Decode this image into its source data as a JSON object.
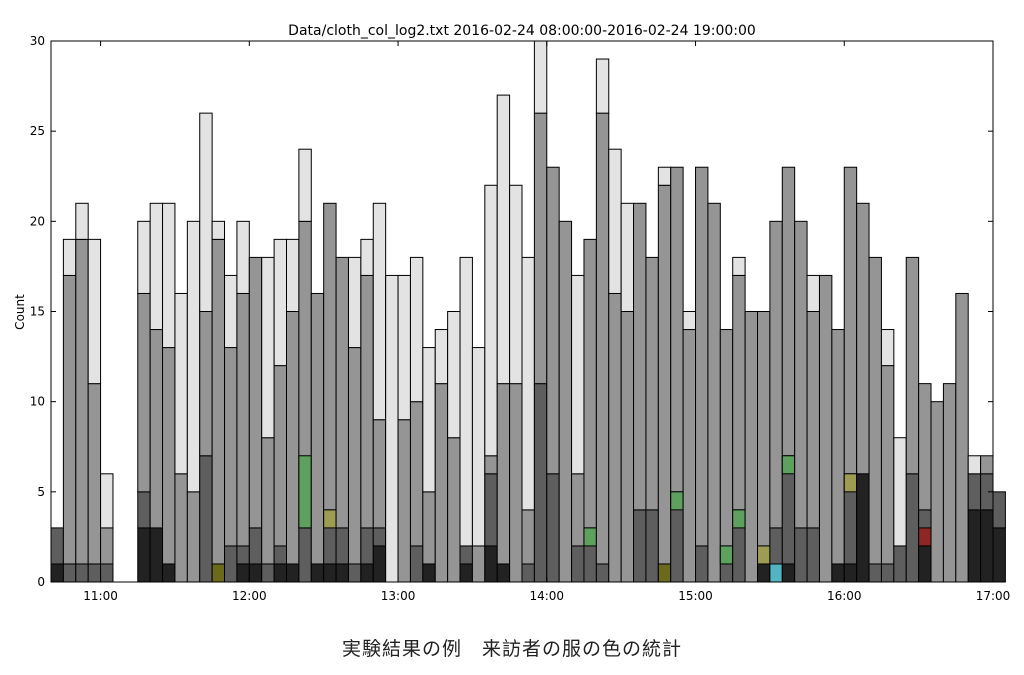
{
  "caption": "実験結果の例　来訪者の服の色の統計",
  "chart_data": {
    "type": "bar",
    "stacked": true,
    "title": "Data/cloth_col_log2.txt 2016-02-24 08:00:00-2016-02-24 19:00:00",
    "xlabel": "",
    "ylabel": "Count",
    "ylim": [
      0,
      30
    ],
    "xlim": [
      "10:40",
      "17:00"
    ],
    "x_ticks": [
      "11:00",
      "12:00",
      "13:00",
      "14:00",
      "15:00",
      "16:00",
      "17:00"
    ],
    "y_ticks": [
      0,
      5,
      10,
      15,
      20,
      25,
      30
    ],
    "bin_minutes": 5,
    "grid": false,
    "layer_colors": [
      "#222222",
      "#5e5e5e",
      "#959595",
      "#e3e3e3"
    ],
    "accent_colors": {
      "green": "#5ea15e",
      "olive": "#9e9c52",
      "darkolive": "#6b6a1c",
      "red": "#8e2626",
      "cyan": "#52b6c2"
    },
    "bars": [
      {
        "t": "10:40",
        "stack": [
          1,
          2,
          0,
          0
        ]
      },
      {
        "t": "10:45",
        "stack": [
          0,
          1,
          16,
          2
        ]
      },
      {
        "t": "10:50",
        "stack": [
          0,
          1,
          18,
          2
        ]
      },
      {
        "t": "10:55",
        "stack": [
          0,
          1,
          10,
          8
        ]
      },
      {
        "t": "11:00",
        "stack": [
          0,
          1,
          2,
          3
        ]
      },
      {
        "t": "11:15",
        "stack": [
          3,
          2,
          11,
          4
        ]
      },
      {
        "t": "11:20",
        "stack": [
          3,
          0,
          11,
          7
        ]
      },
      {
        "t": "11:25",
        "stack": [
          1,
          0,
          12,
          8
        ]
      },
      {
        "t": "11:30",
        "stack": [
          0,
          0,
          6,
          10
        ]
      },
      {
        "t": "11:35",
        "stack": [
          0,
          0,
          5,
          15
        ]
      },
      {
        "t": "11:40",
        "stack": [
          0,
          7,
          8,
          11
        ]
      },
      {
        "t": "11:45",
        "stack": [
          0,
          0,
          19,
          1
        ],
        "accent": {
          "color": "darkolive",
          "from": 0,
          "to": 1
        }
      },
      {
        "t": "11:50",
        "stack": [
          0,
          2,
          11,
          4
        ]
      },
      {
        "t": "11:55",
        "stack": [
          1,
          1,
          14,
          4
        ]
      },
      {
        "t": "12:00",
        "stack": [
          1,
          2,
          15,
          0
        ]
      },
      {
        "t": "12:05",
        "stack": [
          0,
          1,
          7,
          10
        ]
      },
      {
        "t": "12:10",
        "stack": [
          1,
          1,
          10,
          7
        ]
      },
      {
        "t": "12:15",
        "stack": [
          1,
          0,
          14,
          4
        ]
      },
      {
        "t": "12:20",
        "stack": [
          0,
          3,
          17,
          4
        ],
        "accent": {
          "color": "green",
          "from": 3,
          "to": 7
        }
      },
      {
        "t": "12:25",
        "stack": [
          1,
          0,
          15,
          0
        ]
      },
      {
        "t": "12:30",
        "stack": [
          1,
          3,
          17,
          0
        ],
        "accent": {
          "color": "olive",
          "from": 3,
          "to": 4
        }
      },
      {
        "t": "12:35",
        "stack": [
          1,
          2,
          15,
          0
        ]
      },
      {
        "t": "12:40",
        "stack": [
          0,
          1,
          12,
          5
        ]
      },
      {
        "t": "12:45",
        "stack": [
          1,
          2,
          14,
          2
        ]
      },
      {
        "t": "12:50",
        "stack": [
          2,
          1,
          6,
          12
        ]
      },
      {
        "t": "12:55",
        "stack": [
          0,
          0,
          0,
          17
        ]
      },
      {
        "t": "13:00",
        "stack": [
          0,
          0,
          9,
          8
        ]
      },
      {
        "t": "13:05",
        "stack": [
          0,
          2,
          8,
          8
        ]
      },
      {
        "t": "13:10",
        "stack": [
          1,
          0,
          4,
          8
        ]
      },
      {
        "t": "13:15",
        "stack": [
          0,
          0,
          11,
          3
        ]
      },
      {
        "t": "13:20",
        "stack": [
          0,
          0,
          8,
          7
        ]
      },
      {
        "t": "13:25",
        "stack": [
          1,
          1,
          0,
          16
        ]
      },
      {
        "t": "13:30",
        "stack": [
          0,
          0,
          2,
          11
        ]
      },
      {
        "t": "13:35",
        "stack": [
          2,
          4,
          1,
          15
        ]
      },
      {
        "t": "13:40",
        "stack": [
          1,
          0,
          10,
          16
        ]
      },
      {
        "t": "13:45",
        "stack": [
          0,
          0,
          11,
          11
        ]
      },
      {
        "t": "13:50",
        "stack": [
          0,
          1,
          3,
          14
        ]
      },
      {
        "t": "13:55",
        "stack": [
          0,
          11,
          15,
          4
        ]
      },
      {
        "t": "14:00",
        "stack": [
          0,
          6,
          17,
          0
        ]
      },
      {
        "t": "14:05",
        "stack": [
          0,
          0,
          20,
          0
        ]
      },
      {
        "t": "14:10",
        "stack": [
          0,
          2,
          4,
          11
        ]
      },
      {
        "t": "14:15",
        "stack": [
          0,
          3,
          16,
          0
        ],
        "accent": {
          "color": "green",
          "from": 2,
          "to": 3
        }
      },
      {
        "t": "14:20",
        "stack": [
          0,
          1,
          25,
          3
        ]
      },
      {
        "t": "14:25",
        "stack": [
          0,
          0,
          16,
          8
        ]
      },
      {
        "t": "14:30",
        "stack": [
          0,
          0,
          15,
          6
        ]
      },
      {
        "t": "14:35",
        "stack": [
          0,
          4,
          17,
          0
        ]
      },
      {
        "t": "14:40",
        "stack": [
          0,
          4,
          14,
          0
        ]
      },
      {
        "t": "14:45",
        "stack": [
          0,
          1,
          21,
          1
        ],
        "accent": {
          "color": "darkolive",
          "from": 0,
          "to": 1
        }
      },
      {
        "t": "14:50",
        "stack": [
          0,
          5,
          18,
          0
        ],
        "accent": {
          "color": "green",
          "from": 4,
          "to": 5
        }
      },
      {
        "t": "14:55",
        "stack": [
          0,
          0,
          14,
          1
        ]
      },
      {
        "t": "15:00",
        "stack": [
          0,
          2,
          21,
          0
        ]
      },
      {
        "t": "15:05",
        "stack": [
          0,
          0,
          21,
          0
        ]
      },
      {
        "t": "15:10",
        "stack": [
          0,
          2,
          12,
          0
        ],
        "accent": {
          "color": "green",
          "from": 1,
          "to": 2
        }
      },
      {
        "t": "15:15",
        "stack": [
          0,
          4,
          13,
          1
        ],
        "accent": {
          "color": "green",
          "from": 3,
          "to": 4
        }
      },
      {
        "t": "15:20",
        "stack": [
          0,
          0,
          15,
          0
        ]
      },
      {
        "t": "15:25",
        "stack": [
          1,
          1,
          13,
          0
        ],
        "accent": {
          "color": "olive",
          "from": 1,
          "to": 2
        }
      },
      {
        "t": "15:30",
        "stack": [
          0,
          3,
          17,
          0
        ],
        "accent": {
          "color": "cyan",
          "from": 0,
          "to": 1
        }
      },
      {
        "t": "15:35",
        "stack": [
          1,
          6,
          16,
          0
        ],
        "accent": {
          "color": "green",
          "from": 6,
          "to": 7
        }
      },
      {
        "t": "15:40",
        "stack": [
          0,
          3,
          17,
          0
        ]
      },
      {
        "t": "15:45",
        "stack": [
          0,
          3,
          12,
          2
        ]
      },
      {
        "t": "15:50",
        "stack": [
          0,
          0,
          17,
          0
        ]
      },
      {
        "t": "15:55",
        "stack": [
          1,
          0,
          13,
          0
        ]
      },
      {
        "t": "16:00",
        "stack": [
          1,
          5,
          17,
          0
        ],
        "accent": {
          "color": "olive",
          "from": 5,
          "to": 6
        }
      },
      {
        "t": "16:05",
        "stack": [
          6,
          0,
          15,
          0
        ]
      },
      {
        "t": "16:10",
        "stack": [
          0,
          1,
          17,
          0
        ]
      },
      {
        "t": "16:15",
        "stack": [
          0,
          1,
          11,
          2
        ]
      },
      {
        "t": "16:20",
        "stack": [
          0,
          2,
          0,
          6
        ]
      },
      {
        "t": "16:25",
        "stack": [
          0,
          6,
          12,
          0
        ]
      },
      {
        "t": "16:30",
        "stack": [
          2,
          2,
          7,
          0
        ],
        "accent": {
          "color": "red",
          "from": 2,
          "to": 3
        }
      },
      {
        "t": "16:35",
        "stack": [
          0,
          0,
          10,
          0
        ]
      },
      {
        "t": "16:40",
        "stack": [
          0,
          0,
          11,
          0
        ]
      },
      {
        "t": "16:45",
        "stack": [
          0,
          0,
          16,
          0
        ]
      },
      {
        "t": "16:50",
        "stack": [
          4,
          2,
          0,
          1
        ]
      },
      {
        "t": "16:55",
        "stack": [
          4,
          2,
          1,
          0
        ]
      },
      {
        "t": "17:00",
        "stack": [
          3,
          2,
          0,
          0
        ]
      }
    ]
  }
}
